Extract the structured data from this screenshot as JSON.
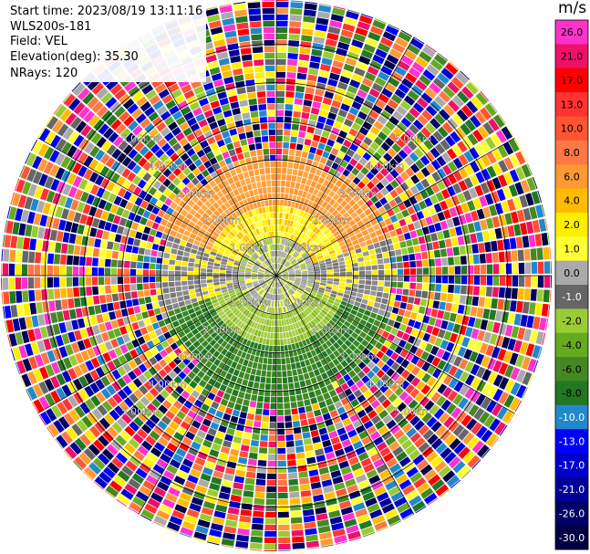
{
  "header": {
    "start_time": "Start time: 2023/08/19 13:11:16",
    "instrument": "WLS200s-181",
    "field": "Field: VEL",
    "elevation": "Elevation(deg): 35.30",
    "nrays": "NRays: 120"
  },
  "colorbar": {
    "units": "m/s",
    "ticks": [
      "26.0",
      "21.0",
      "17.0",
      "13.0",
      "10.0",
      "8.0",
      "6.0",
      "4.0",
      "2.0",
      "1.0",
      "0.0",
      "-1.0",
      "-2.0",
      "-4.0",
      "-6.0",
      "-8.0",
      "-10.0",
      "-13.0",
      "-17.0",
      "-21.0",
      "-26.0",
      "-30.0"
    ],
    "colors": [
      "#ff33cc",
      "#ee1166",
      "#ff0000",
      "#ff3333",
      "#ff5533",
      "#ff7744",
      "#ff9933",
      "#ffbb00",
      "#ffee00",
      "#ffff33",
      "#aaaaaa",
      "#666666",
      "#99cc33",
      "#66aa22",
      "#448822",
      "#227722",
      "#2288cc",
      "#0000ff",
      "#0000cc",
      "#000099",
      "#000066",
      "#000044"
    ]
  },
  "range_rings": {
    "labels": [
      "1.00km",
      "2.00km",
      "3.00km",
      "4.00km",
      "5.00km"
    ]
  },
  "ppi": {
    "field": "VEL",
    "nrays": 120
  }
}
